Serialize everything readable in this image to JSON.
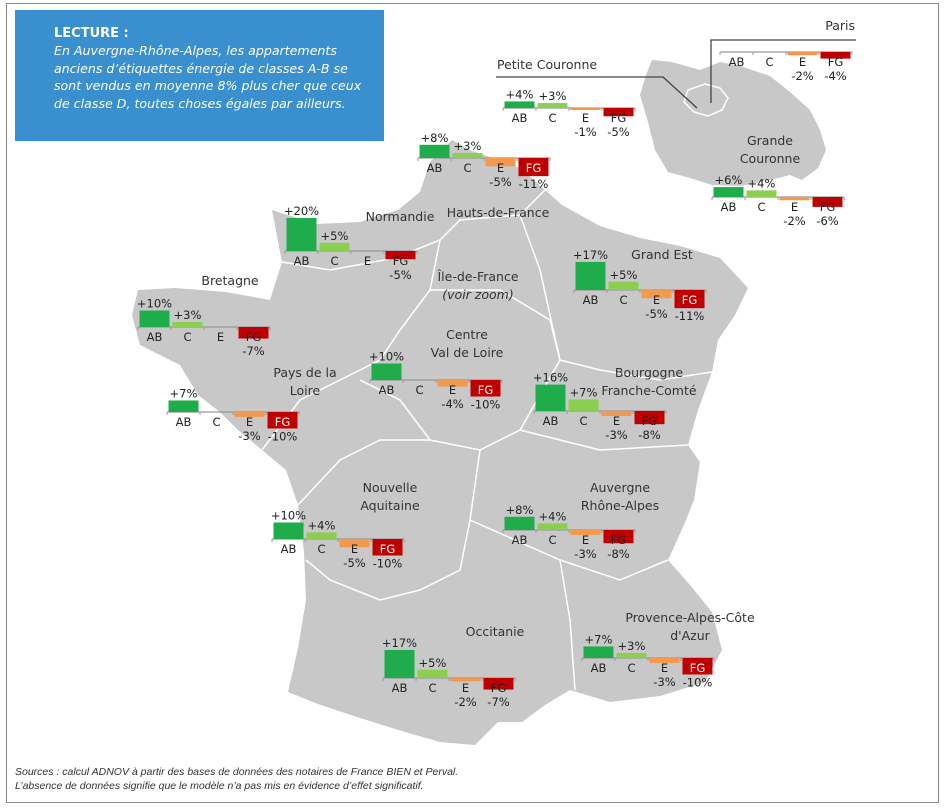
{
  "lecture": {
    "title": "LECTURE :",
    "body": "En Auvergne-Rhône-Alpes, les appartements anciens d’étiquettes énergie de classes A-B se sont vendus en moyenne 8% plus cher que ceux de classe D, toutes choses égales par ailleurs."
  },
  "categories": [
    "AB",
    "C",
    "E",
    "FG"
  ],
  "colors": {
    "AB": "#1fad4b",
    "C": "#8ccf50",
    "E": "#f2994e",
    "FG": "#c00000",
    "land": "#c8c8c8",
    "border": "#ffffff"
  },
  "regions": [
    {
      "id": "paris",
      "label_lines": [
        "Paris"
      ],
      "values": [
        null,
        null,
        -2,
        -4
      ]
    },
    {
      "id": "petite-couronne",
      "label_lines": [
        "Petite Couronne"
      ],
      "values": [
        4,
        3,
        -1,
        -5
      ]
    },
    {
      "id": "grande-couronne",
      "label_lines": [
        "Grande",
        "Couronne"
      ],
      "values": [
        6,
        4,
        -2,
        -6
      ]
    },
    {
      "id": "hauts-de-france",
      "label_lines": [
        "Hauts-de-France"
      ],
      "values": [
        8,
        3,
        -5,
        -11
      ]
    },
    {
      "id": "normandie",
      "label_lines": [
        "Normandie"
      ],
      "values": [
        20,
        5,
        null,
        -5
      ]
    },
    {
      "id": "bretagne",
      "label_lines": [
        "Bretagne"
      ],
      "values": [
        10,
        3,
        null,
        -7
      ]
    },
    {
      "id": "pays-de-la-loire",
      "label_lines": [
        "Pays de la",
        "Loire"
      ],
      "values": [
        7,
        null,
        -3,
        -10
      ]
    },
    {
      "id": "centre-val-de-loire",
      "label_lines": [
        "Centre",
        "Val de Loire"
      ],
      "values": [
        10,
        null,
        -4,
        -10
      ]
    },
    {
      "id": "ile-de-france",
      "label_lines": [
        "Île-de-France",
        "(voir zoom)"
      ],
      "values": null
    },
    {
      "id": "grand-est",
      "label_lines": [
        "Grand Est"
      ],
      "values": [
        17,
        5,
        -5,
        -11
      ]
    },
    {
      "id": "bourgogne-franche-comte",
      "label_lines": [
        "Bourgogne",
        "Franche-Comté"
      ],
      "values": [
        16,
        7,
        -3,
        -8
      ]
    },
    {
      "id": "nouvelle-aquitaine",
      "label_lines": [
        "Nouvelle",
        "Aquitaine"
      ],
      "values": [
        10,
        4,
        -5,
        -10
      ]
    },
    {
      "id": "auvergne-rhone-alpes",
      "label_lines": [
        "Auvergne",
        "Rhône-Alpes"
      ],
      "values": [
        8,
        4,
        -3,
        -8
      ]
    },
    {
      "id": "occitanie",
      "label_lines": [
        "Occitanie"
      ],
      "values": [
        17,
        5,
        -2,
        -7
      ]
    },
    {
      "id": "provence-alpes-cote-d-azur",
      "label_lines": [
        "Provence-Alpes-Côte",
        "d'Azur"
      ],
      "values": [
        7,
        3,
        -3,
        -10
      ]
    }
  ],
  "sources": {
    "line1": "Sources : calcul ADNOV à partir des bases de données des notaires de France BIEN et Perval.",
    "line2": "L’absence de données signifie que le modèle n’a pas mis en évidence d’effet significatif."
  }
}
